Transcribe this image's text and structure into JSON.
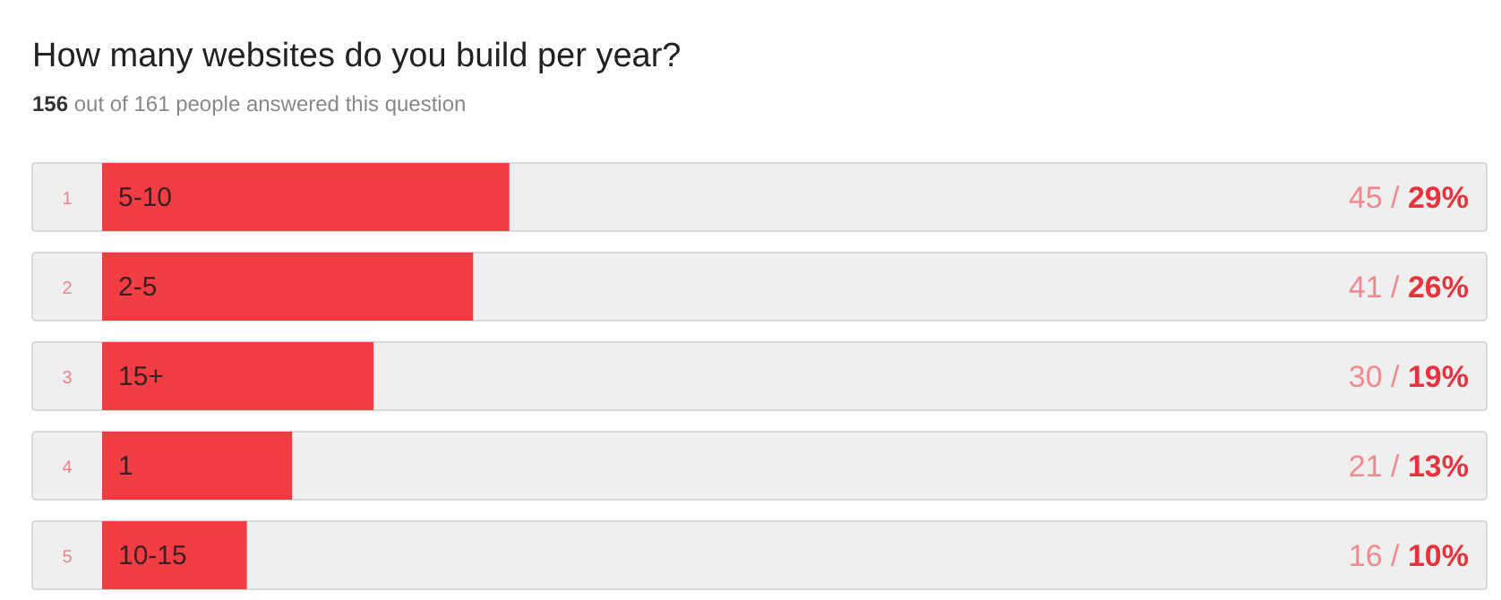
{
  "chart_data": {
    "type": "bar",
    "orientation": "horizontal",
    "title": "How many websites do you build per year?",
    "subtitle": "156 out of 161 people answered this question",
    "categories": [
      "5-10",
      "2-5",
      "15+",
      "1",
      "10-15"
    ],
    "values": [
      45,
      41,
      30,
      21,
      16
    ],
    "value_labels": [
      "45 / 29%",
      "41 / 26%",
      "30 / 19%",
      "21 / 13%",
      "16 / 10%"
    ],
    "annotations": [
      "1",
      "2",
      "3",
      "4",
      "5"
    ],
    "color": "#f23d45"
  }
}
